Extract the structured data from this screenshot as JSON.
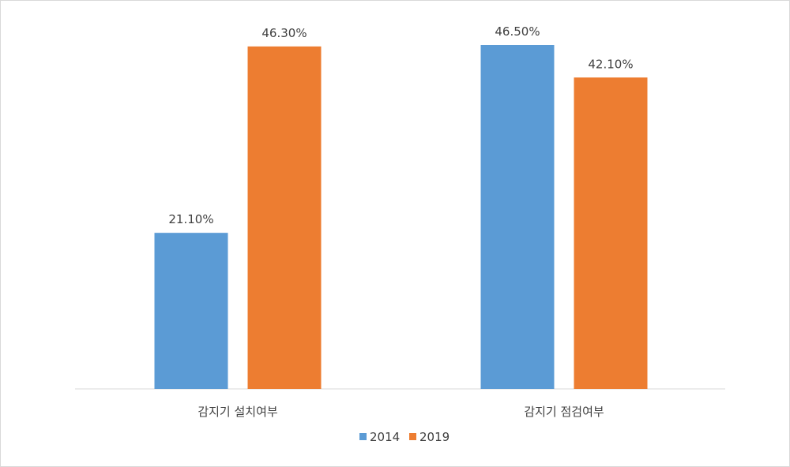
{
  "chart_data": {
    "type": "bar",
    "title": "",
    "xlabel": "",
    "ylabel": "",
    "categories": [
      "감지기 설치여부",
      "감지기 점검여부"
    ],
    "series": [
      {
        "name": "2014",
        "values": [
          21.1,
          46.5
        ],
        "labels": [
          "21.10%",
          "46.50%"
        ],
        "color": "#5B9BD5"
      },
      {
        "name": "2019",
        "values": [
          46.3,
          42.1
        ],
        "labels": [
          "46.30%",
          "42.10%"
        ],
        "color": "#ED7D31"
      }
    ],
    "ylim": [
      0,
      50
    ],
    "grid": false,
    "y_axis_visible": false,
    "legend_position": "bottom"
  }
}
